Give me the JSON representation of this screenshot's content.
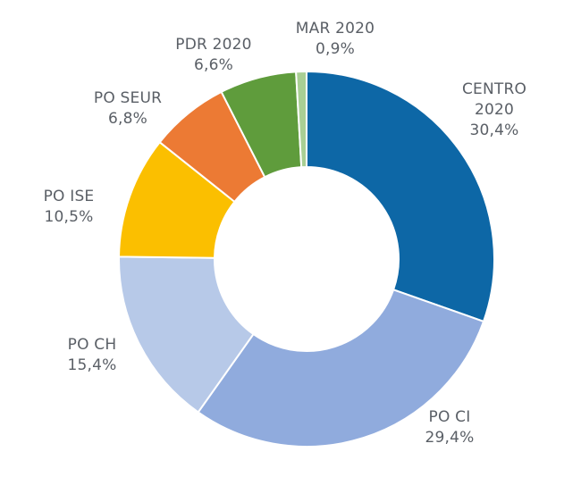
{
  "chart_data": {
    "type": "pie",
    "variant": "donut",
    "title": "",
    "slices": [
      {
        "label_lines": [
          "CENTRO",
          "2020"
        ],
        "value": 30.4,
        "value_label": "30,4%",
        "color": "#0d67a6"
      },
      {
        "label_lines": [
          "PO CI"
        ],
        "value": 29.4,
        "value_label": "29,4%",
        "color": "#90abdd"
      },
      {
        "label_lines": [
          "PO CH"
        ],
        "value": 15.4,
        "value_label": "15,4%",
        "color": "#b7c9e8"
      },
      {
        "label_lines": [
          "PO ISE"
        ],
        "value": 10.5,
        "value_label": "10,5%",
        "color": "#fbbf00"
      },
      {
        "label_lines": [
          "PO SEUR"
        ],
        "value": 6.8,
        "value_label": "6,8%",
        "color": "#ec7a34"
      },
      {
        "label_lines": [
          "PDR 2020"
        ],
        "value": 6.6,
        "value_label": "6,6%",
        "color": "#5f9c3c"
      },
      {
        "label_lines": [
          "MAR 2020"
        ],
        "value": 0.9,
        "value_label": "0,9%",
        "color": "#a9cf94"
      }
    ]
  }
}
